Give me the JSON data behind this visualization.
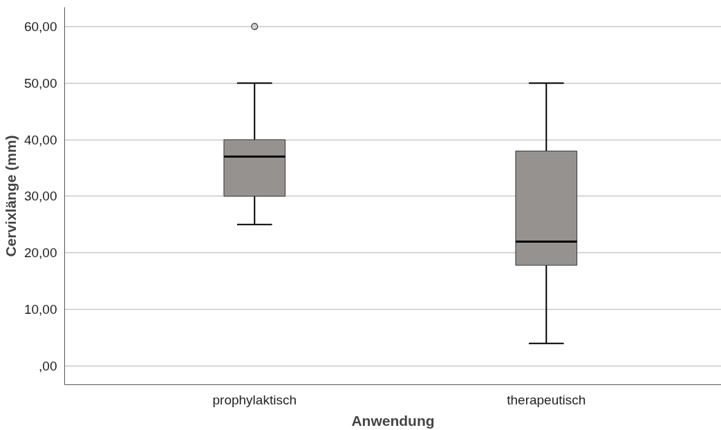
{
  "chart_data": {
    "type": "box",
    "xlabel": "Anwendung",
    "ylabel": "Cervixlänge (mm)",
    "categories": [
      "prophylaktisch",
      "therapeutisch"
    ],
    "boxes": [
      {
        "low": 25,
        "q1": 30,
        "median": 37,
        "q3": 40,
        "high": 50,
        "outliers": [
          60
        ]
      },
      {
        "low": 4,
        "q1": 17.8,
        "median": 22,
        "q3": 38,
        "high": 50
      }
    ],
    "color": "#969290",
    "ylim": [
      -3.3,
      63.4
    ],
    "yticks": [
      {
        "value": 0,
        "label": ",00"
      },
      {
        "value": 10,
        "label": "10,00"
      },
      {
        "value": 20,
        "label": "20,00"
      },
      {
        "value": 30,
        "label": "30,00"
      },
      {
        "value": 40,
        "label": "40,00"
      },
      {
        "value": 50,
        "label": "50,00"
      },
      {
        "value": 60,
        "label": "60,00"
      }
    ],
    "grid": "y"
  }
}
